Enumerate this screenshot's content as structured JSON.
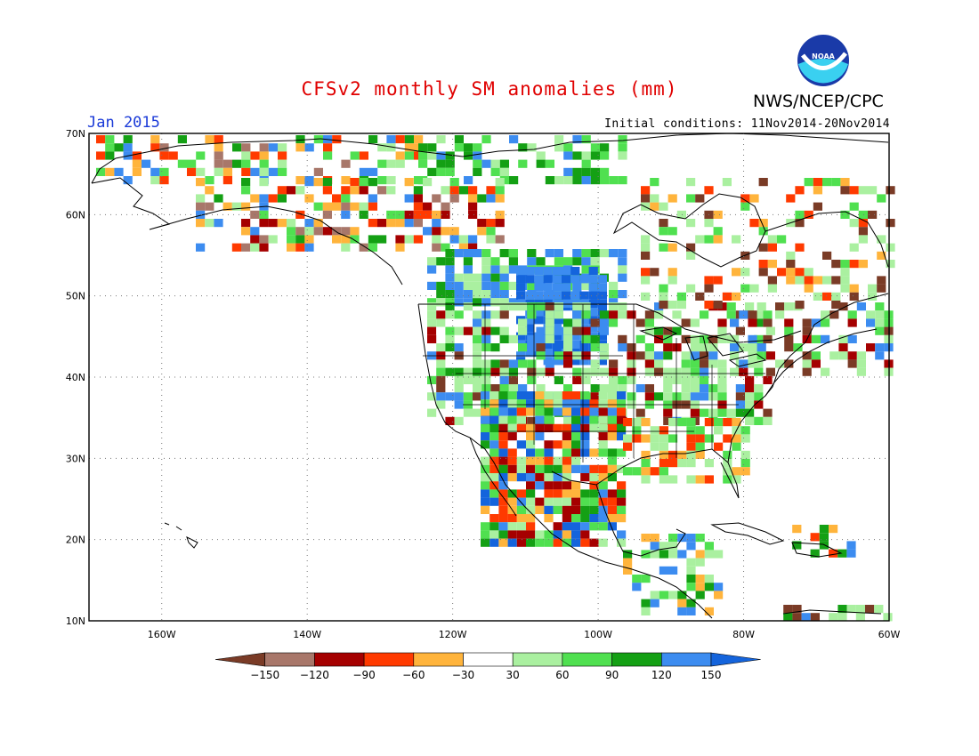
{
  "header": {
    "title": "CFSv2 monthly SM anomalies (mm)",
    "month": "Jan 2015",
    "initial_conditions": "Initial conditions: 11Nov2014-20Nov2014",
    "agency": "NWS/NCEP/CPC",
    "logo_text": "NOAA"
  },
  "map": {
    "lon_range": [
      -170,
      -60
    ],
    "lat_range": [
      10,
      70
    ],
    "lat_labels": [
      "70N",
      "60N",
      "50N",
      "40N",
      "30N",
      "20N",
      "10N"
    ],
    "lon_labels": [
      "160W",
      "140W",
      "120W",
      "100W",
      "80W",
      "60W"
    ],
    "grid": "dotted"
  },
  "colorbar": {
    "tick_labels": [
      "-150",
      "-120",
      "-90",
      "-60",
      "-30",
      "30",
      "60",
      "90",
      "120",
      "150"
    ],
    "colors": [
      "#7a3b26",
      "#a8776a",
      "#a50000",
      "#ff3a00",
      "#ffb43c",
      "#ffffff",
      "#aaf0a0",
      "#50e050",
      "#14a014",
      "#3c8cf0",
      "#1464dc"
    ]
  }
}
